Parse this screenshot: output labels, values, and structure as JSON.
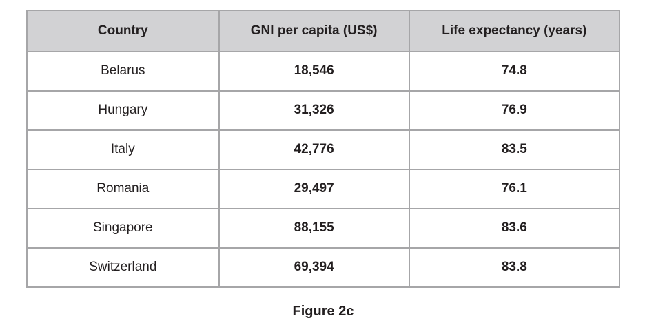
{
  "table": {
    "columns": [
      "Country",
      "GNI per capita (US$)",
      "Life expectancy (years)"
    ],
    "rows": [
      {
        "country": "Belarus",
        "gni": "18,546",
        "life": "74.8"
      },
      {
        "country": "Hungary",
        "gni": "31,326",
        "life": "76.9"
      },
      {
        "country": "Italy",
        "gni": "42,776",
        "life": "83.5"
      },
      {
        "country": "Romania",
        "gni": "29,497",
        "life": "76.1"
      },
      {
        "country": "Singapore",
        "gni": "88,155",
        "life": "83.6"
      },
      {
        "country": "Switzerland",
        "gni": "69,394",
        "life": "83.8"
      }
    ]
  },
  "caption": "Figure 2c",
  "colors": {
    "header_bg": "#d2d2d4",
    "border": "#a6a6a8",
    "outer_border": "#999a9c",
    "text": "#231f20",
    "page_bg": "#ffffff"
  },
  "chart_data": {
    "type": "table",
    "title": "Figure 2c",
    "columns": [
      "Country",
      "GNI per capita (US$)",
      "Life expectancy (years)"
    ],
    "rows": [
      [
        "Belarus",
        18546,
        74.8
      ],
      [
        "Hungary",
        31326,
        76.9
      ],
      [
        "Italy",
        42776,
        83.5
      ],
      [
        "Romania",
        29497,
        76.1
      ],
      [
        "Singapore",
        88155,
        83.6
      ],
      [
        "Switzerland",
        69394,
        83.8
      ]
    ]
  }
}
